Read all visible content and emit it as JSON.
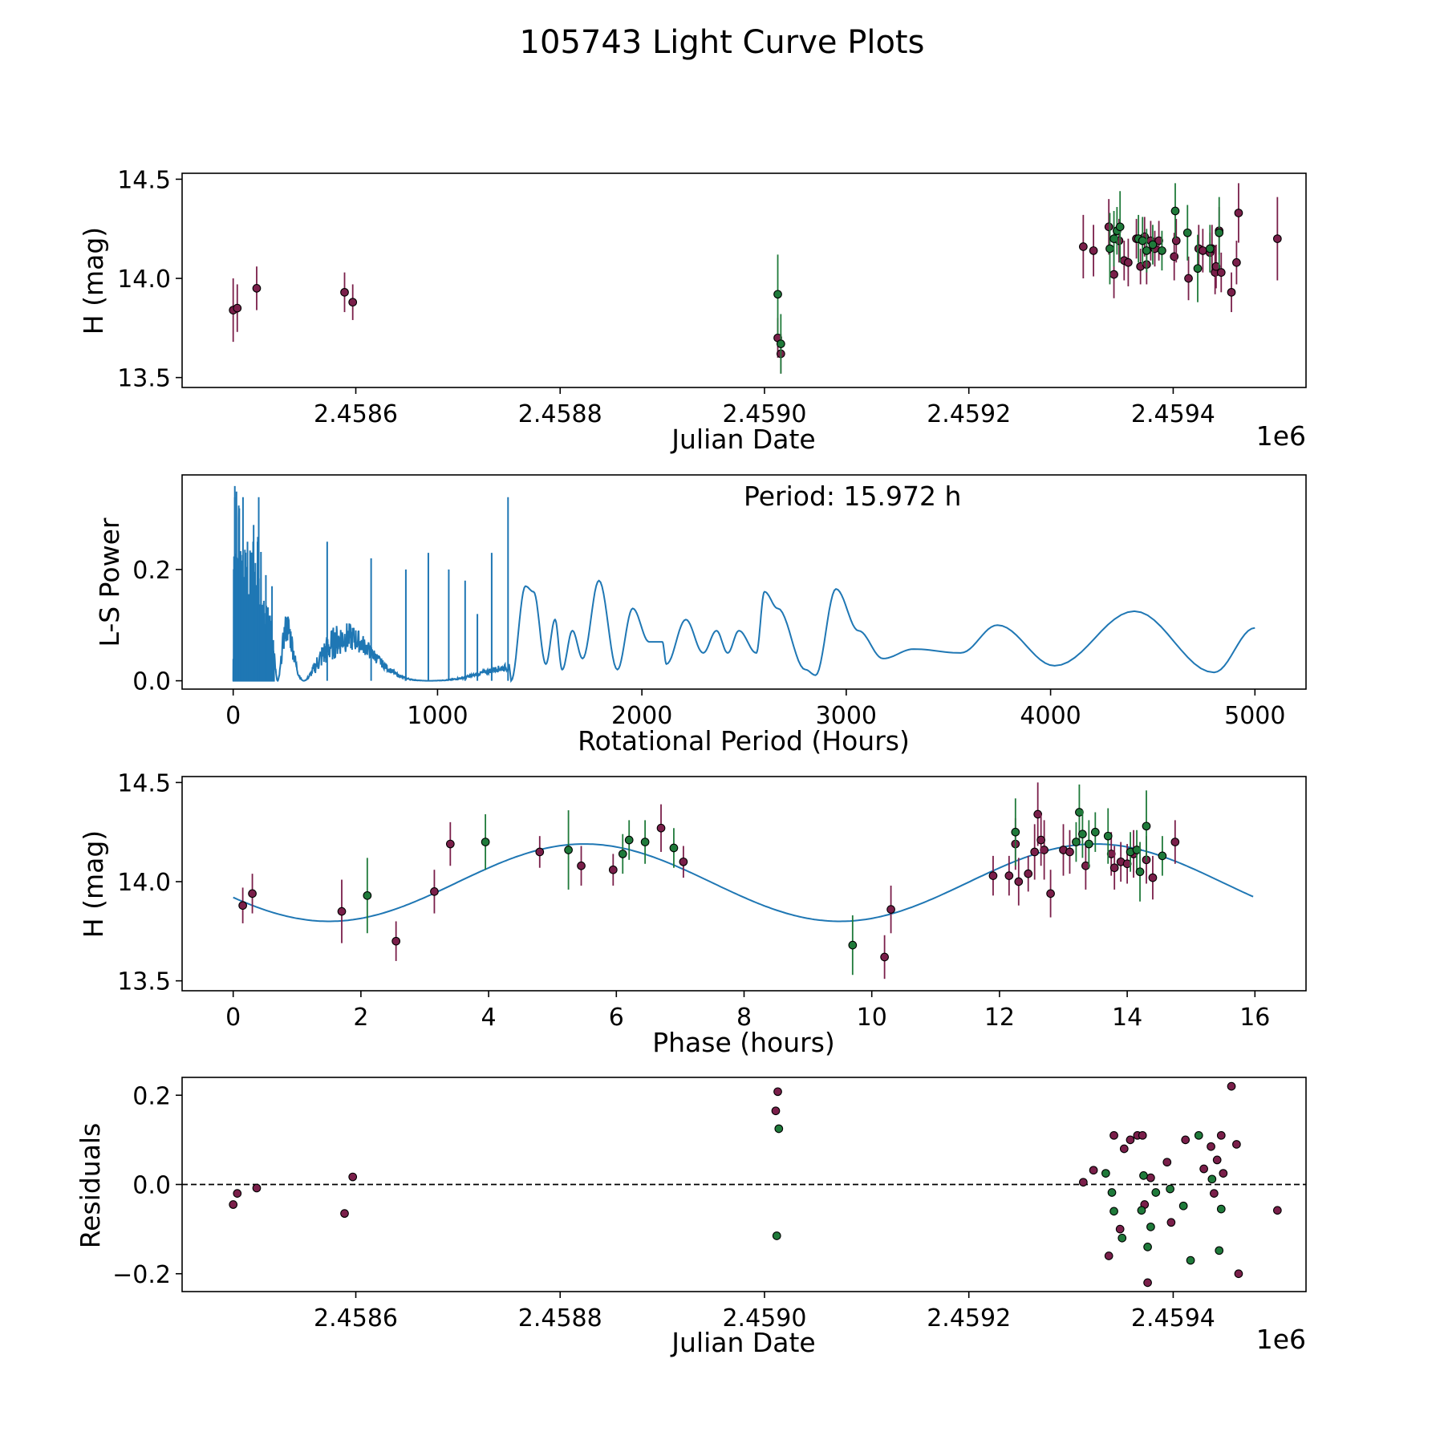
{
  "figure": {
    "title": "105743 Light Curve Plots"
  },
  "colors": {
    "red_band": "#7a1f4a",
    "green_band": "#1f7a3a",
    "curve": "#1f77b4",
    "axis": "#000000"
  },
  "chart_data": [
    {
      "id": "lightcurve",
      "type": "scatter",
      "xlabel": "Julian Date",
      "ylabel": "H (mag)",
      "x_offset_label": "1e6",
      "xlim": [
        2458430,
        2459530
      ],
      "ylim": [
        13.45,
        14.53
      ],
      "xticks": [
        2458600,
        2458800,
        2459000,
        2459200,
        2459400
      ],
      "xtick_labels": [
        "2.4586",
        "2.4588",
        "2.4590",
        "2.4592",
        "2.4594"
      ],
      "yticks": [
        13.5,
        14.0,
        14.5
      ],
      "ytick_labels": [
        "13.5",
        "14.0",
        "14.5"
      ],
      "series": [
        {
          "name": "r",
          "color": "#7a1f4a",
          "points": [
            [
              2458480,
              13.84,
              0.16
            ],
            [
              2458484,
              13.85,
              0.12
            ],
            [
              2458503,
              13.95,
              0.11
            ],
            [
              2458589,
              13.93,
              0.1
            ],
            [
              2458597,
              13.88,
              0.09
            ],
            [
              2459013,
              13.7,
              0.1
            ],
            [
              2459016,
              13.62,
              0.1
            ],
            [
              2459312,
              14.16,
              0.16
            ],
            [
              2459322,
              14.14,
              0.13
            ],
            [
              2459337,
              14.26,
              0.14
            ],
            [
              2459342,
              14.02,
              0.12
            ],
            [
              2459347,
              14.19,
              0.11
            ],
            [
              2459352,
              14.09,
              0.1
            ],
            [
              2459356,
              14.08,
              0.12
            ],
            [
              2459364,
              14.2,
              0.1
            ],
            [
              2459368,
              14.06,
              0.09
            ],
            [
              2459372,
              14.21,
              0.1
            ],
            [
              2459374,
              14.07,
              0.1
            ],
            [
              2459378,
              14.19,
              0.1
            ],
            [
              2459382,
              14.15,
              0.09
            ],
            [
              2459386,
              14.19,
              0.1
            ],
            [
              2459401,
              14.11,
              0.12
            ],
            [
              2459403,
              14.19,
              0.11
            ],
            [
              2459415,
              14.0,
              0.11
            ],
            [
              2459425,
              14.15,
              0.12
            ],
            [
              2459429,
              14.14,
              0.11
            ],
            [
              2459436,
              14.13,
              0.1
            ],
            [
              2459438,
              14.15,
              0.12
            ],
            [
              2459441,
              14.03,
              0.11
            ],
            [
              2459442,
              14.06,
              0.11
            ],
            [
              2459445,
              14.24,
              0.12
            ],
            [
              2459447,
              14.03,
              0.1
            ],
            [
              2459457,
              13.93,
              0.1
            ],
            [
              2459462,
              14.08,
              0.11
            ],
            [
              2459464,
              14.33,
              0.15
            ],
            [
              2459502,
              14.2,
              0.21
            ]
          ]
        },
        {
          "name": "g",
          "color": "#1f7a3a",
          "points": [
            [
              2459013,
              13.92,
              0.2
            ],
            [
              2459016,
              13.67,
              0.15
            ],
            [
              2459338,
              14.15,
              0.18
            ],
            [
              2459342,
              14.2,
              0.14
            ],
            [
              2459345,
              14.24,
              0.12
            ],
            [
              2459348,
              14.26,
              0.18
            ],
            [
              2459366,
              14.2,
              0.12
            ],
            [
              2459370,
              14.19,
              0.12
            ],
            [
              2459374,
              14.14,
              0.11
            ],
            [
              2459380,
              14.17,
              0.1
            ],
            [
              2459389,
              14.14,
              0.1
            ],
            [
              2459402,
              14.34,
              0.14
            ],
            [
              2459414,
              14.23,
              0.14
            ],
            [
              2459424,
              14.05,
              0.17
            ],
            [
              2459436,
              14.15,
              0.12
            ],
            [
              2459445,
              14.23,
              0.18
            ]
          ]
        }
      ]
    },
    {
      "id": "periodogram",
      "type": "line",
      "xlabel": "Rotational Period (Hours)",
      "ylabel": "L-S Power",
      "annotation": "Period: 15.972 h",
      "xlim": [
        -250,
        5250
      ],
      "ylim": [
        -0.015,
        0.37
      ],
      "xticks": [
        0,
        1000,
        2000,
        3000,
        4000,
        5000
      ],
      "xtick_labels": [
        "0",
        "1000",
        "2000",
        "3000",
        "4000",
        "5000"
      ],
      "yticks": [
        0.0,
        0.2
      ],
      "ytick_labels": [
        "0.0",
        "0.2"
      ],
      "peaks": [
        [
          8,
          0.35
        ],
        [
          16,
          0.34
        ],
        [
          30,
          0.31
        ],
        [
          48,
          0.33
        ],
        [
          70,
          0.25
        ],
        [
          100,
          0.28
        ],
        [
          125,
          0.33
        ],
        [
          160,
          0.19
        ],
        [
          190,
          0.17
        ],
        [
          460,
          0.25
        ],
        [
          675,
          0.22
        ],
        [
          845,
          0.2
        ],
        [
          955,
          0.23
        ],
        [
          1055,
          0.2
        ],
        [
          1135,
          0.18
        ],
        [
          1195,
          0.12
        ],
        [
          1265,
          0.23
        ],
        [
          1345,
          0.33
        ],
        [
          1430,
          0.17
        ],
        [
          1470,
          0.16
        ],
        [
          1575,
          0.11
        ],
        [
          1660,
          0.09
        ],
        [
          1790,
          0.18
        ],
        [
          1955,
          0.13
        ],
        [
          2035,
          0.07
        ],
        [
          2215,
          0.11
        ],
        [
          2365,
          0.09
        ],
        [
          2475,
          0.09
        ],
        [
          2600,
          0.16
        ],
        [
          2665,
          0.13
        ],
        [
          2950,
          0.165
        ],
        [
          3060,
          0.09
        ],
        [
          3330,
          0.057
        ],
        [
          3740,
          0.1
        ],
        [
          4410,
          0.125
        ],
        [
          5000,
          0.095
        ]
      ],
      "valleys": [
        [
          1360,
          0.0
        ],
        [
          1530,
          0.03
        ],
        [
          1610,
          0.02
        ],
        [
          1710,
          0.04
        ],
        [
          1880,
          0.02
        ],
        [
          2100,
          0.07
        ],
        [
          2120,
          0.03
        ],
        [
          2300,
          0.05
        ],
        [
          2420,
          0.05
        ],
        [
          2560,
          0.05
        ],
        [
          2800,
          0.02
        ],
        [
          2850,
          0.01
        ],
        [
          3180,
          0.04
        ],
        [
          3560,
          0.05
        ],
        [
          4020,
          0.027
        ],
        [
          4800,
          0.015
        ]
      ]
    },
    {
      "id": "phased",
      "type": "scatter",
      "xlabel": "Phase (hours)",
      "ylabel": "H (mag)",
      "xlim": [
        -0.8,
        16.8
      ],
      "ylim": [
        13.45,
        14.53
      ],
      "xticks": [
        0,
        2,
        4,
        6,
        8,
        10,
        12,
        14,
        16
      ],
      "xtick_labels": [
        "0",
        "2",
        "4",
        "6",
        "8",
        "10",
        "12",
        "14",
        "16"
      ],
      "yticks": [
        13.5,
        14.0,
        14.5
      ],
      "ytick_labels": [
        "13.5",
        "14.0",
        "14.5"
      ],
      "fit": {
        "mean": 13.995,
        "amplitude": 0.195,
        "period": 8.0,
        "peak_phase": 5.5,
        "x_range": [
          0,
          15.972
        ]
      },
      "series": [
        {
          "name": "r",
          "color": "#7a1f4a",
          "points": [
            [
              0.15,
              13.88,
              0.09
            ],
            [
              0.3,
              13.94,
              0.1
            ],
            [
              1.7,
              13.85,
              0.16
            ],
            [
              2.55,
              13.7,
              0.1
            ],
            [
              3.15,
              13.95,
              0.11
            ],
            [
              3.4,
              14.19,
              0.11
            ],
            [
              4.8,
              14.15,
              0.08
            ],
            [
              5.45,
              14.08,
              0.1
            ],
            [
              5.95,
              14.06,
              0.08
            ],
            [
              6.7,
              14.27,
              0.12
            ],
            [
              7.05,
              14.1,
              0.08
            ],
            [
              10.2,
              13.62,
              0.11
            ],
            [
              10.3,
              13.86,
              0.12
            ],
            [
              11.9,
              14.03,
              0.1
            ],
            [
              12.15,
              14.03,
              0.1
            ],
            [
              12.25,
              14.19,
              0.13
            ],
            [
              12.3,
              14.0,
              0.12
            ],
            [
              12.45,
              14.04,
              0.09
            ],
            [
              12.55,
              14.15,
              0.14
            ],
            [
              12.6,
              14.34,
              0.16
            ],
            [
              12.7,
              14.16,
              0.15
            ],
            [
              12.65,
              14.21,
              0.13
            ],
            [
              12.8,
              13.94,
              0.12
            ],
            [
              13.0,
              14.16,
              0.13
            ],
            [
              13.1,
              14.15,
              0.11
            ],
            [
              13.35,
              14.08,
              0.12
            ],
            [
              13.75,
              14.14,
              0.11
            ],
            [
              13.8,
              14.07,
              0.11
            ],
            [
              13.9,
              14.1,
              0.1
            ],
            [
              14.0,
              14.09,
              0.1
            ],
            [
              14.1,
              14.14,
              0.12
            ],
            [
              14.3,
              14.11,
              0.12
            ],
            [
              14.4,
              14.02,
              0.11
            ],
            [
              14.75,
              14.2,
              0.11
            ]
          ]
        },
        {
          "name": "g",
          "color": "#1f7a3a",
          "points": [
            [
              2.1,
              13.93,
              0.19
            ],
            [
              3.95,
              14.2,
              0.14
            ],
            [
              5.25,
              14.16,
              0.2
            ],
            [
              6.1,
              14.14,
              0.1
            ],
            [
              6.2,
              14.21,
              0.1
            ],
            [
              6.45,
              14.2,
              0.11
            ],
            [
              6.9,
              14.17,
              0.1
            ],
            [
              9.7,
              13.68,
              0.15
            ],
            [
              12.25,
              14.25,
              0.17
            ],
            [
              13.25,
              14.35,
              0.14
            ],
            [
              13.2,
              14.2,
              0.1
            ],
            [
              13.3,
              14.24,
              0.12
            ],
            [
              13.4,
              14.19,
              0.12
            ],
            [
              13.5,
              14.25,
              0.1
            ],
            [
              13.7,
              14.23,
              0.14
            ],
            [
              14.05,
              14.15,
              0.1
            ],
            [
              14.15,
              14.16,
              0.1
            ],
            [
              14.2,
              14.05,
              0.15
            ],
            [
              14.3,
              14.28,
              0.18
            ],
            [
              14.55,
              14.13,
              0.1
            ]
          ]
        }
      ]
    },
    {
      "id": "residuals",
      "type": "scatter",
      "xlabel": "Julian Date",
      "ylabel": "Residuals",
      "x_offset_label": "1e6",
      "xlim": [
        2458430,
        2459530
      ],
      "ylim": [
        -0.24,
        0.24
      ],
      "xticks": [
        2458600,
        2458800,
        2459000,
        2459200,
        2459400
      ],
      "xtick_labels": [
        "2.4586",
        "2.4588",
        "2.4590",
        "2.4592",
        "2.4594"
      ],
      "yticks": [
        -0.2,
        0.0,
        0.2
      ],
      "ytick_labels": [
        "−0.2",
        "0.0",
        "0.2"
      ],
      "zero_line": true,
      "series": [
        {
          "name": "r",
          "color": "#7a1f4a",
          "points": [
            [
              2458480,
              -0.045
            ],
            [
              2458484,
              -0.02
            ],
            [
              2458503,
              -0.008
            ],
            [
              2458589,
              -0.065
            ],
            [
              2458597,
              0.017
            ],
            [
              2459011,
              0.165
            ],
            [
              2459013,
              0.208
            ],
            [
              2459312,
              0.005
            ],
            [
              2459322,
              0.032
            ],
            [
              2459337,
              -0.16
            ],
            [
              2459342,
              0.11
            ],
            [
              2459348,
              -0.1
            ],
            [
              2459352,
              0.08
            ],
            [
              2459358,
              0.1
            ],
            [
              2459365,
              0.11
            ],
            [
              2459370,
              0.11
            ],
            [
              2459372,
              -0.045
            ],
            [
              2459378,
              0.015
            ],
            [
              2459394,
              0.05
            ],
            [
              2459398,
              -0.085
            ],
            [
              2459412,
              0.1
            ],
            [
              2459430,
              0.035
            ],
            [
              2459437,
              0.085
            ],
            [
              2459440,
              -0.02
            ],
            [
              2459443,
              0.055
            ],
            [
              2459447,
              0.11
            ],
            [
              2459449,
              0.025
            ],
            [
              2459457,
              0.22
            ],
            [
              2459462,
              0.09
            ],
            [
              2459464,
              -0.2
            ],
            [
              2459502,
              -0.058
            ],
            [
              2459375,
              -0.22
            ]
          ]
        },
        {
          "name": "g",
          "color": "#1f7a3a",
          "points": [
            [
              2459014,
              0.125
            ],
            [
              2459012,
              -0.115
            ],
            [
              2459334,
              0.025
            ],
            [
              2459340,
              -0.018
            ],
            [
              2459342,
              -0.06
            ],
            [
              2459350,
              -0.12
            ],
            [
              2459369,
              -0.058
            ],
            [
              2459371,
              0.02
            ],
            [
              2459375,
              -0.14
            ],
            [
              2459378,
              -0.095
            ],
            [
              2459383,
              -0.018
            ],
            [
              2459397,
              -0.01
            ],
            [
              2459410,
              -0.048
            ],
            [
              2459417,
              -0.17
            ],
            [
              2459425,
              0.11
            ],
            [
              2459438,
              0.012
            ],
            [
              2459445,
              -0.148
            ],
            [
              2459447,
              -0.055
            ]
          ]
        }
      ]
    }
  ]
}
